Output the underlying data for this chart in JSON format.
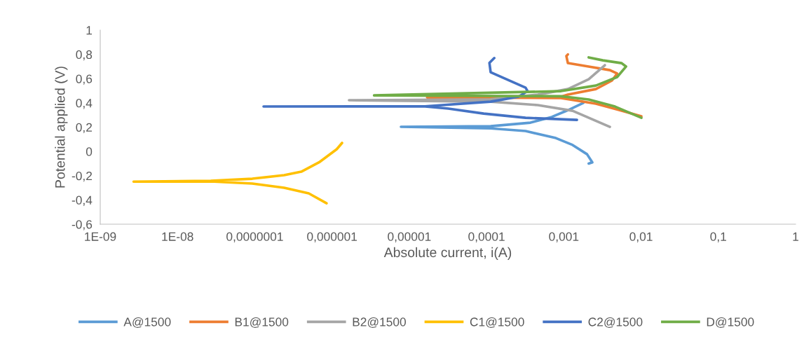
{
  "chart_data": {
    "type": "line",
    "xlabel": "Absolute current, i(A)",
    "ylabel": "Potential applied (V)",
    "log": "x",
    "grid": false,
    "legend": "bottom",
    "marker": "none",
    "line_style": "solid",
    "xlim": [
      1e-09,
      1
    ],
    "ylim": [
      -0.6,
      1
    ],
    "xticks": [
      {
        "value": 1e-09,
        "label": "1E-09"
      },
      {
        "value": 1e-08,
        "label": "1E-08"
      },
      {
        "value": 1e-07,
        "label": "0,0000001"
      },
      {
        "value": 1e-06,
        "label": "0,000001"
      },
      {
        "value": 1e-05,
        "label": "0,00001"
      },
      {
        "value": 0.0001,
        "label": "0,0001"
      },
      {
        "value": 0.001,
        "label": "0,001"
      },
      {
        "value": 0.01,
        "label": "0,01"
      },
      {
        "value": 0.1,
        "label": "0,1"
      },
      1
    ],
    "yticks": [
      {
        "value": -0.6,
        "label": "-0,6"
      },
      {
        "value": -0.4,
        "label": "-0,4"
      },
      {
        "value": -0.2,
        "label": "-0,2"
      },
      0,
      {
        "value": 0.2,
        "label": "0,2"
      },
      {
        "value": 0.4,
        "label": "0,4"
      },
      {
        "value": 0.6,
        "label": "0,6"
      },
      {
        "value": 0.8,
        "label": "0,8"
      },
      1
    ],
    "series": [
      {
        "name": "A@1500",
        "color": "#5b9bd5",
        "x": [
          0.0021,
          0.00234,
          0.002,
          0.0013,
          0.00079,
          0.00032,
          0.000113,
          7.8e-06,
          0.000113,
          0.00037,
          0.0007,
          0.00113,
          0.00179
        ],
        "values": [
          -0.1,
          -0.09,
          -0.023,
          0.053,
          0.11,
          0.168,
          0.19,
          0.203,
          0.208,
          0.237,
          0.284,
          0.34,
          0.4
        ]
      },
      {
        "name": "B1@1500",
        "color": "#ed7d31",
        "x": [
          0.0101,
          0.0052,
          0.0026,
          0.00092,
          1.7e-05,
          0.00092,
          0.00113,
          0.0026,
          0.0042,
          0.0049,
          0.00395,
          0.0021,
          0.00113,
          0.00108,
          0.00113
        ],
        "values": [
          0.289,
          0.341,
          0.393,
          0.44,
          0.445,
          0.452,
          0.468,
          0.514,
          0.584,
          0.642,
          0.67,
          0.7,
          0.728,
          0.786,
          0.8
        ]
      },
      {
        "name": "B2@1500",
        "color": "#a5a5a5",
        "x": [
          0.00395,
          0.0013,
          0.00046,
          0.000113,
          1.66e-06,
          0.000113,
          0.00046,
          0.00113,
          0.0021,
          0.0034
        ],
        "values": [
          0.202,
          0.335,
          0.382,
          0.41,
          0.422,
          0.43,
          0.468,
          0.514,
          0.595,
          0.711
        ]
      },
      {
        "name": "C1@1500",
        "color": "#ffc000",
        "x": [
          8.5e-07,
          5e-07,
          2.4e-07,
          9.3e-08,
          2.7e-08,
          2.7e-09,
          2.7e-08,
          9.3e-08,
          2.4e-07,
          4e-07,
          6.8e-07,
          1.15e-06,
          1.35e-06
        ],
        "values": [
          -0.427,
          -0.346,
          -0.3,
          -0.265,
          -0.248,
          -0.249,
          -0.242,
          -0.225,
          -0.196,
          -0.167,
          -0.09,
          0.018,
          0.07
        ]
      },
      {
        "name": "C2@1500",
        "color": "#4472c4",
        "x": [
          0.00148,
          0.00032,
          9.2e-05,
          3.2e-05,
          1.6e-05,
          1.3e-07,
          1.6e-05,
          0.000113,
          0.00026,
          0.00034,
          0.00032,
          0.000113,
          0.000109,
          0.000126
        ],
        "values": [
          0.26,
          0.277,
          0.312,
          0.353,
          0.37,
          0.37,
          0.372,
          0.41,
          0.451,
          0.497,
          0.526,
          0.653,
          0.73,
          0.77
        ]
      },
      {
        "name": "D@1500",
        "color": "#70ad47",
        "x": [
          0.0101,
          0.0046,
          0.0021,
          0.00092,
          3.5e-06,
          0.00092,
          0.0026,
          0.0049,
          0.0064,
          0.0056,
          0.0032,
          0.0021
        ],
        "values": [
          0.277,
          0.37,
          0.428,
          0.455,
          0.462,
          0.497,
          0.543,
          0.613,
          0.7,
          0.728,
          0.751,
          0.775
        ]
      }
    ]
  }
}
